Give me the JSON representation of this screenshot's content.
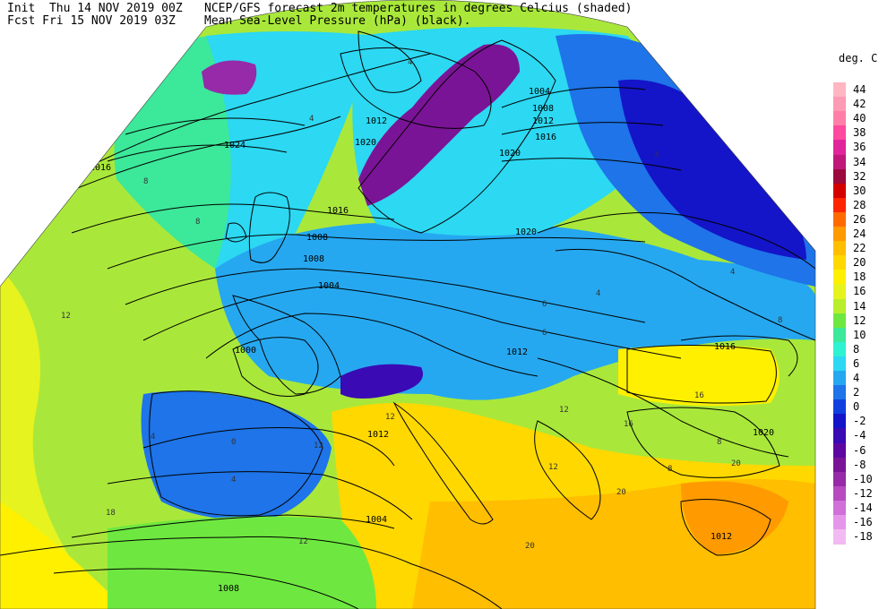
{
  "header": {
    "init": "Init  Thu 14 NOV 2019 00Z",
    "fcst": "Fcst Fri 15 NOV 2019 03Z",
    "title_line1": "NCEP/GFS forecast 2m temperatures in degrees Celcius (shaded)",
    "title_line2": "Mean Sea-Level Pressure (hPa) (black)."
  },
  "legend": {
    "title": "deg. C",
    "levels": [
      {
        "label": "44",
        "color": "#ffb6c1"
      },
      {
        "label": "42",
        "color": "#ff9ab4"
      },
      {
        "label": "40",
        "color": "#ff7fa8"
      },
      {
        "label": "38",
        "color": "#ff4aa0"
      },
      {
        "label": "36",
        "color": "#e0249a"
      },
      {
        "label": "34",
        "color": "#c0187a"
      },
      {
        "label": "32",
        "color": "#9c0a3c"
      },
      {
        "label": "30",
        "color": "#d40000"
      },
      {
        "label": "28",
        "color": "#ff2400"
      },
      {
        "label": "26",
        "color": "#ff6a00"
      },
      {
        "label": "24",
        "color": "#ff9a00"
      },
      {
        "label": "22",
        "color": "#ffbe00"
      },
      {
        "label": "20",
        "color": "#ffd800"
      },
      {
        "label": "18",
        "color": "#fff000"
      },
      {
        "label": "16",
        "color": "#e6f31e"
      },
      {
        "label": "14",
        "color": "#b8ee2c"
      },
      {
        "label": "12",
        "color": "#6ee840"
      },
      {
        "label": "10",
        "color": "#3ce89a"
      },
      {
        "label": "8",
        "color": "#2ef2d2"
      },
      {
        "label": "6",
        "color": "#2cd8f2"
      },
      {
        "label": "4",
        "color": "#26a8f0"
      },
      {
        "label": "2",
        "color": "#1e74e8"
      },
      {
        "label": "0",
        "color": "#1040e0"
      },
      {
        "label": "-2",
        "color": "#1414c8"
      },
      {
        "label": "-4",
        "color": "#3a0ab4"
      },
      {
        "label": "-6",
        "color": "#5c08a0"
      },
      {
        "label": "-8",
        "color": "#7a1496"
      },
      {
        "label": "-10",
        "color": "#962aa8"
      },
      {
        "label": "-12",
        "color": "#b84ac0"
      },
      {
        "label": "-14",
        "color": "#d070d8"
      },
      {
        "label": "-16",
        "color": "#e696ea"
      },
      {
        "label": "-18",
        "color": "#f2baf2"
      }
    ]
  },
  "map": {
    "isobar_labels": [
      "1024",
      "1016",
      "1012",
      "1008",
      "1004",
      "1000",
      "1012",
      "1016",
      "1020",
      "1004",
      "1008",
      "1012",
      "1016",
      "1020",
      "1020",
      "1016",
      "1012",
      "1020",
      "1008",
      "1004",
      "1008",
      "1012"
    ],
    "temp_labels": [
      "4",
      "4",
      "8",
      "8",
      "4",
      "4",
      "6",
      "6",
      "4",
      "8",
      "12",
      "16",
      "12",
      "16",
      "18",
      "20",
      "20",
      "12",
      "12",
      "8",
      "8",
      "12",
      "12",
      "20",
      "4",
      "4",
      "0"
    ]
  }
}
